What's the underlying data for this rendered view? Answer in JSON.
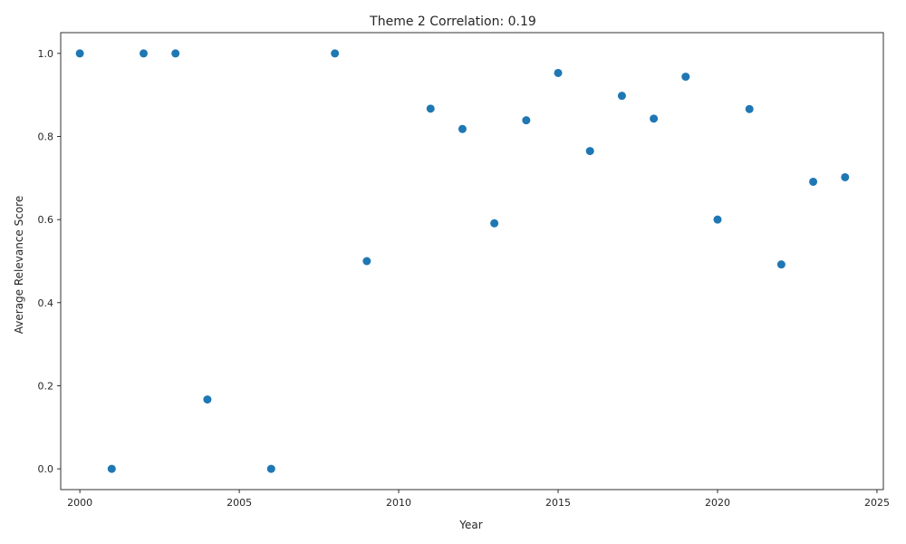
{
  "chart_data": {
    "type": "scatter",
    "title": "Theme 2 Correlation: 0.19",
    "xlabel": "Year",
    "ylabel": "Average Relevance Score",
    "xlim": [
      1999.4,
      2025.2
    ],
    "ylim": [
      -0.05,
      1.05
    ],
    "xticks": [
      2000,
      2005,
      2010,
      2015,
      2020,
      2025
    ],
    "yticks": [
      0.0,
      0.2,
      0.4,
      0.6,
      0.8,
      1.0
    ],
    "xtick_labels": [
      "2000",
      "2005",
      "2010",
      "2015",
      "2020",
      "2025"
    ],
    "ytick_labels": [
      "0.0",
      "0.2",
      "0.4",
      "0.6",
      "0.8",
      "1.0"
    ],
    "grid": false,
    "marker_color": "#1f77b4",
    "x": [
      2000,
      2001,
      2002,
      2003,
      2004,
      2006,
      2008,
      2009,
      2011,
      2012,
      2013,
      2014,
      2015,
      2016,
      2017,
      2018,
      2019,
      2020,
      2021,
      2022,
      2023,
      2024
    ],
    "y": [
      1.0,
      0.0,
      1.0,
      1.0,
      0.167,
      0.0,
      1.0,
      0.5,
      0.867,
      0.818,
      0.591,
      0.839,
      0.953,
      0.765,
      0.898,
      0.843,
      0.944,
      0.6,
      0.866,
      0.492,
      0.691,
      0.702
    ]
  }
}
